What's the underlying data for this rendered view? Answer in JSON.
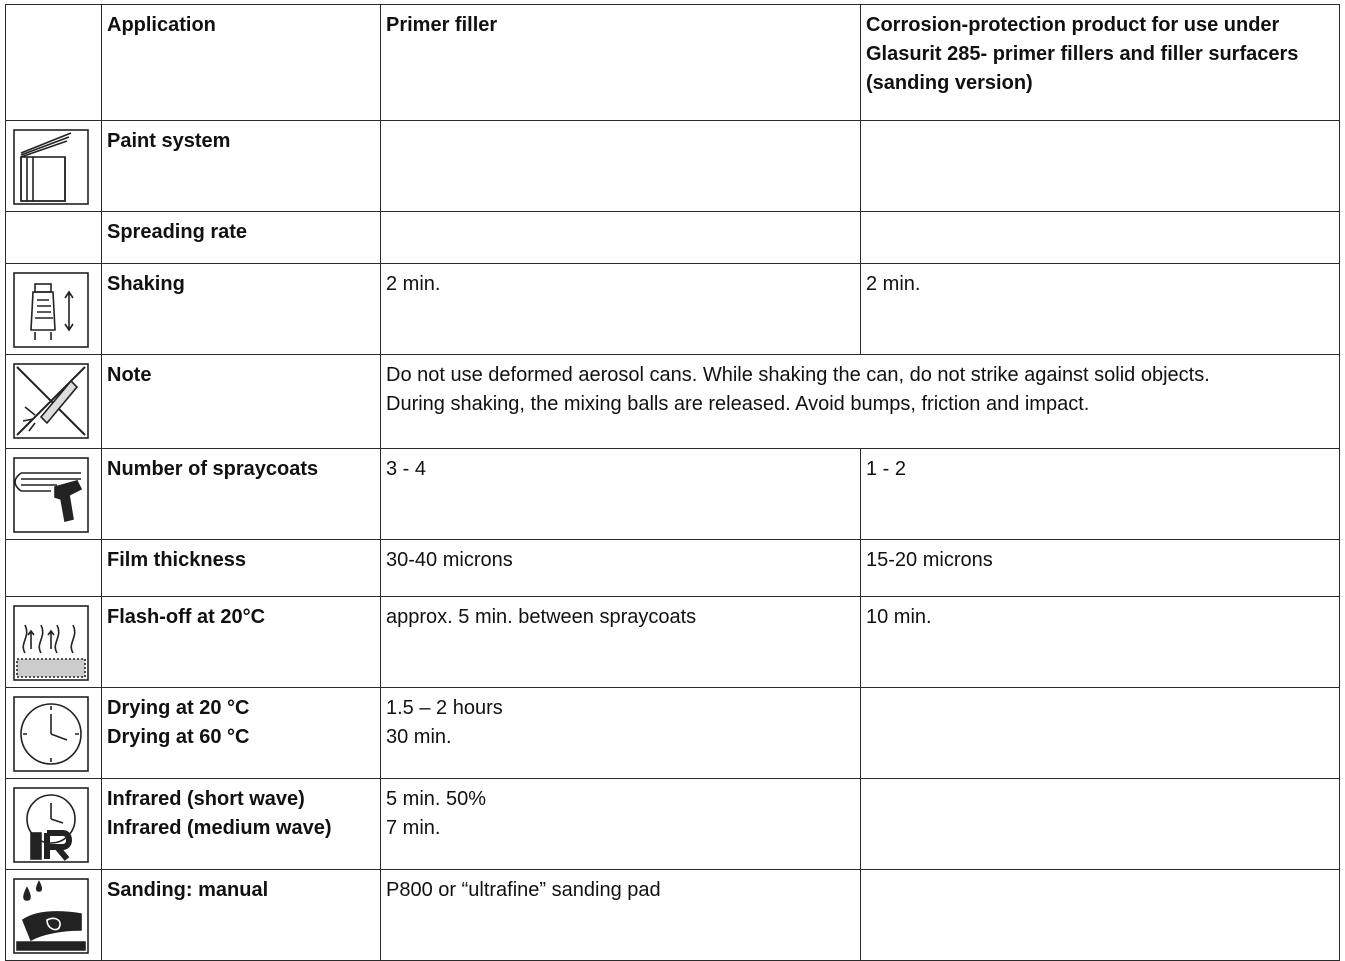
{
  "header": {
    "application": "Application",
    "primer_filler": "Primer filler",
    "corrosion_protection": "Corrosion-protection product for use under Glasurit 285- primer fillers and filler surfacers (sanding version)"
  },
  "rows": [
    {
      "icon": "paint-system-icon",
      "label": [
        "Paint system"
      ],
      "primer": [],
      "corrosion": []
    },
    {
      "icon": "",
      "label": [
        "Spreading rate"
      ],
      "primer": [],
      "corrosion": []
    },
    {
      "icon": "shaking-icon",
      "label": [
        "Shaking"
      ],
      "primer": [
        "2 min."
      ],
      "corrosion": [
        "2 min."
      ]
    },
    {
      "icon": "note-warning-icon",
      "label": [
        "Note"
      ],
      "note": [
        "Do not use deformed aerosol cans. While shaking the can, do not strike against solid objects.",
        "During shaking, the mixing balls are released. Avoid bumps, friction and impact."
      ]
    },
    {
      "icon": "spray-gun-icon",
      "label": [
        "Number of spraycoats"
      ],
      "primer": [
        "3 - 4"
      ],
      "corrosion": [
        "1 - 2"
      ]
    },
    {
      "icon": "",
      "label": [
        "Film thickness"
      ],
      "primer": [
        "30-40 microns"
      ],
      "corrosion": [
        "15-20 microns"
      ]
    },
    {
      "icon": "flash-off-icon",
      "label": [
        "Flash-off at 20°C"
      ],
      "primer": [
        "approx. 5 min. between spraycoats"
      ],
      "corrosion": [
        "10 min."
      ]
    },
    {
      "icon": "clock-icon",
      "label": [
        "Drying at 20 °C",
        "Drying at 60 °C"
      ],
      "primer": [
        "1.5 – 2 hours",
        "30 min."
      ],
      "corrosion": []
    },
    {
      "icon": "infrared-clock-icon",
      "label": [
        "Infrared (short wave)",
        "Infrared (medium wave)"
      ],
      "primer": [
        "5 min. 50%",
        "7 min."
      ],
      "corrosion": []
    },
    {
      "icon": "manual-sanding-icon",
      "label": [
        "Sanding: manual"
      ],
      "primer": [
        "P800 or “ultrafine” sanding pad"
      ],
      "corrosion": []
    }
  ]
}
